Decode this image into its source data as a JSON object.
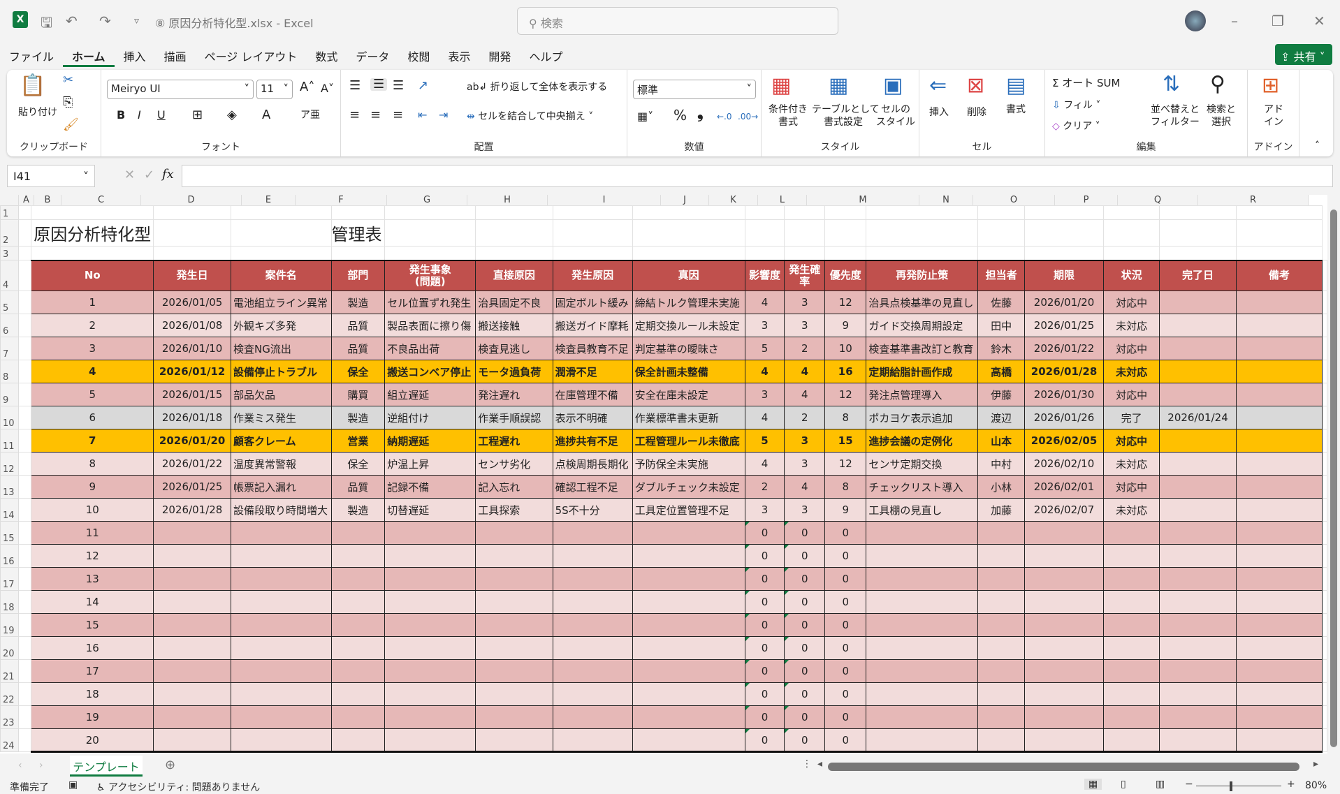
{
  "window": {
    "title": "⑧ 原因分析特化型.xlsx  -  Excel",
    "search_placeholder": "検索",
    "share": "共有"
  },
  "menu": [
    "ファイル",
    "ホーム",
    "挿入",
    "描画",
    "ページ レイアウト",
    "数式",
    "データ",
    "校閲",
    "表示",
    "開発",
    "ヘルプ"
  ],
  "menu_active": 1,
  "ribbon": {
    "clipboard": {
      "label": "クリップボード",
      "paste": "貼り付け"
    },
    "font": {
      "label": "フォント",
      "name": "Meiryo UI",
      "size": "11",
      "bold": "B",
      "italic": "I",
      "underline": "U"
    },
    "alignment": {
      "label": "配置",
      "wrap": "折り返して全体を表示する",
      "merge": "セルを結合して中央揃え"
    },
    "number": {
      "label": "数値",
      "format": "標準",
      "percent": "%",
      "comma": "❟"
    },
    "styles": {
      "label": "スタイル",
      "conditional": "条件付き\n書式",
      "table": "テーブルとして\n書式設定",
      "cell": "セルの\nスタイル"
    },
    "cells": {
      "label": "セル",
      "insert": "挿入",
      "delete": "削除",
      "format": "書式"
    },
    "editing": {
      "label": "編集",
      "autosum": "Σ オート SUM",
      "fill": "フィル",
      "clear": "クリア",
      "sort": "並べ替えと\nフィルター",
      "find": "検索と\n選択"
    },
    "addins": {
      "label": "アドイン",
      "addin": "アド\nイン"
    }
  },
  "formula_bar": {
    "name_box": "I41",
    "fx": "fx",
    "value": ""
  },
  "columns": [
    "A",
    "B",
    "C",
    "D",
    "E",
    "F",
    "G",
    "H",
    "I",
    "J",
    "K",
    "L",
    "M",
    "N",
    "O",
    "P",
    "Q",
    "R"
  ],
  "sheet": {
    "title": "原因分析特化型",
    "subtitle": "管理表",
    "headers": [
      "No",
      "発生日",
      "案件名",
      "部門",
      "発生事象\n(問題)",
      "直接原因",
      "発生原因",
      "真因",
      "影響度",
      "発生確率",
      "優先度",
      "再発防止策",
      "担当者",
      "期限",
      "状況",
      "完了日",
      "備考"
    ],
    "rows": [
      [
        "1",
        "2026/01/05",
        "電池組立ライン異常",
        "製造",
        "セル位置ずれ発生",
        "治具固定不良",
        "固定ボルト緩み",
        "締結トルク管理未実施",
        "4",
        "3",
        "12",
        "治具点検基準の見直し",
        "佐藤",
        "2026/01/20",
        "対応中",
        "",
        ""
      ],
      [
        "2",
        "2026/01/08",
        "外観キズ多発",
        "品質",
        "製品表面に擦り傷",
        "搬送接触",
        "搬送ガイド摩耗",
        "定期交換ルール未設定",
        "3",
        "3",
        "9",
        "ガイド交換周期設定",
        "田中",
        "2026/01/25",
        "未対応",
        "",
        ""
      ],
      [
        "3",
        "2026/01/10",
        "検査NG流出",
        "品質",
        "不良品出荷",
        "検査見逃し",
        "検査員教育不足",
        "判定基準の曖昧さ",
        "5",
        "2",
        "10",
        "検査基準書改訂と教育",
        "鈴木",
        "2026/01/22",
        "対応中",
        "",
        ""
      ],
      [
        "4",
        "2026/01/12",
        "設備停止トラブル",
        "保全",
        "搬送コンベア停止",
        "モータ過負荷",
        "潤滑不足",
        "保全計画未整備",
        "4",
        "4",
        "16",
        "定期給脂計画作成",
        "高橋",
        "2026/01/28",
        "未対応",
        "",
        ""
      ],
      [
        "5",
        "2026/01/15",
        "部品欠品",
        "購買",
        "組立遅延",
        "発注遅れ",
        "在庫管理不備",
        "安全在庫未設定",
        "3",
        "4",
        "12",
        "発注点管理導入",
        "伊藤",
        "2026/01/30",
        "対応中",
        "",
        ""
      ],
      [
        "6",
        "2026/01/18",
        "作業ミス発生",
        "製造",
        "逆組付け",
        "作業手順誤認",
        "表示不明確",
        "作業標準書未更新",
        "4",
        "2",
        "8",
        "ポカヨケ表示追加",
        "渡辺",
        "2026/01/26",
        "完了",
        "2026/01/24",
        ""
      ],
      [
        "7",
        "2026/01/20",
        "顧客クレーム",
        "営業",
        "納期遅延",
        "工程遅れ",
        "進捗共有不足",
        "工程管理ルール未徹底",
        "5",
        "3",
        "15",
        "進捗会議の定例化",
        "山本",
        "2026/02/05",
        "対応中",
        "",
        ""
      ],
      [
        "8",
        "2026/01/22",
        "温度異常警報",
        "保全",
        "炉温上昇",
        "センサ劣化",
        "点検周期長期化",
        "予防保全未実施",
        "4",
        "3",
        "12",
        "センサ定期交換",
        "中村",
        "2026/02/10",
        "未対応",
        "",
        ""
      ],
      [
        "9",
        "2026/01/25",
        "帳票記入漏れ",
        "品質",
        "記録不備",
        "記入忘れ",
        "確認工程不足",
        "ダブルチェック未設定",
        "2",
        "4",
        "8",
        "チェックリスト導入",
        "小林",
        "2026/02/01",
        "対応中",
        "",
        ""
      ],
      [
        "10",
        "2026/01/28",
        "設備段取り時間増大",
        "製造",
        "切替遅延",
        "工具探索",
        "5S不十分",
        "工具定位置管理不足",
        "3",
        "3",
        "9",
        "工具棚の見直し",
        "加藤",
        "2026/02/07",
        "未対応",
        "",
        ""
      ],
      [
        "11",
        "",
        "",
        "",
        "",
        "",
        "",
        "",
        "0",
        "0",
        "0",
        "",
        "",
        "",
        "",
        "",
        ""
      ],
      [
        "12",
        "",
        "",
        "",
        "",
        "",
        "",
        "",
        "0",
        "0",
        "0",
        "",
        "",
        "",
        "",
        "",
        ""
      ],
      [
        "13",
        "",
        "",
        "",
        "",
        "",
        "",
        "",
        "0",
        "0",
        "0",
        "",
        "",
        "",
        "",
        "",
        ""
      ],
      [
        "14",
        "",
        "",
        "",
        "",
        "",
        "",
        "",
        "0",
        "0",
        "0",
        "",
        "",
        "",
        "",
        "",
        ""
      ],
      [
        "15",
        "",
        "",
        "",
        "",
        "",
        "",
        "",
        "0",
        "0",
        "0",
        "",
        "",
        "",
        "",
        "",
        ""
      ],
      [
        "16",
        "",
        "",
        "",
        "",
        "",
        "",
        "",
        "0",
        "0",
        "0",
        "",
        "",
        "",
        "",
        "",
        ""
      ],
      [
        "17",
        "",
        "",
        "",
        "",
        "",
        "",
        "",
        "0",
        "0",
        "0",
        "",
        "",
        "",
        "",
        "",
        ""
      ],
      [
        "18",
        "",
        "",
        "",
        "",
        "",
        "",
        "",
        "0",
        "0",
        "0",
        "",
        "",
        "",
        "",
        "",
        ""
      ],
      [
        "19",
        "",
        "",
        "",
        "",
        "",
        "",
        "",
        "0",
        "0",
        "0",
        "",
        "",
        "",
        "",
        "",
        ""
      ],
      [
        "20",
        "",
        "",
        "",
        "",
        "",
        "",
        "",
        "0",
        "0",
        "0",
        "",
        "",
        "",
        "",
        "",
        ""
      ]
    ],
    "highlight_rows": [
      4,
      7
    ],
    "completed_rows": [
      6
    ]
  },
  "colors": {
    "header": "#c0504d",
    "row_dark": "#e6b8b7",
    "row_light": "#f2dcdb",
    "completed": "#d9d9d9",
    "highlight": "#ffc000",
    "accent": "#107c41"
  },
  "sheet_tabs": [
    "テンプレート"
  ],
  "status": {
    "ready": "準備完了",
    "accessibility": "アクセシビリティ: 問題ありません",
    "zoom": "80%",
    "zoom_level": 80
  }
}
